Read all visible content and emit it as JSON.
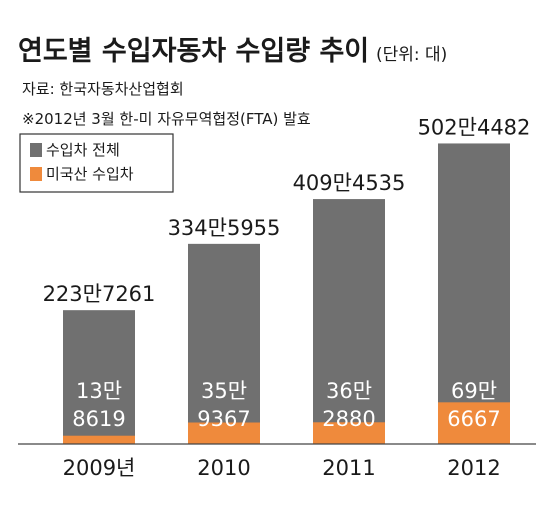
{
  "chart_data": {
    "type": "bar",
    "title": "연도별 수입자동차 수입량 추이",
    "unit": "(단위: 대)",
    "source": "자료: 한국자동차산업협회",
    "note": "※2012년 3월 한-미 자유무역협정(FTA) 발효",
    "categories": [
      "2009년",
      "2010",
      "2011",
      "2012"
    ],
    "ylim": [
      0,
      5500000
    ],
    "legend_position": "top-left",
    "series": [
      {
        "name": "수입차 전체",
        "color": "#707070",
        "values": [
          2237261,
          3345955,
          4094535,
          5024482
        ],
        "labels": [
          "223만7261",
          "334만5955",
          "409만4535",
          "502만4482"
        ]
      },
      {
        "name": "미국산 수입차",
        "color": "#ef8a3c",
        "values": [
          138619,
          359367,
          362880,
          696667
        ],
        "labels": [
          [
            "13만",
            "8619"
          ],
          [
            "35만",
            "9367"
          ],
          [
            "36만",
            "2880"
          ],
          [
            "69만",
            "6667"
          ]
        ]
      }
    ]
  }
}
